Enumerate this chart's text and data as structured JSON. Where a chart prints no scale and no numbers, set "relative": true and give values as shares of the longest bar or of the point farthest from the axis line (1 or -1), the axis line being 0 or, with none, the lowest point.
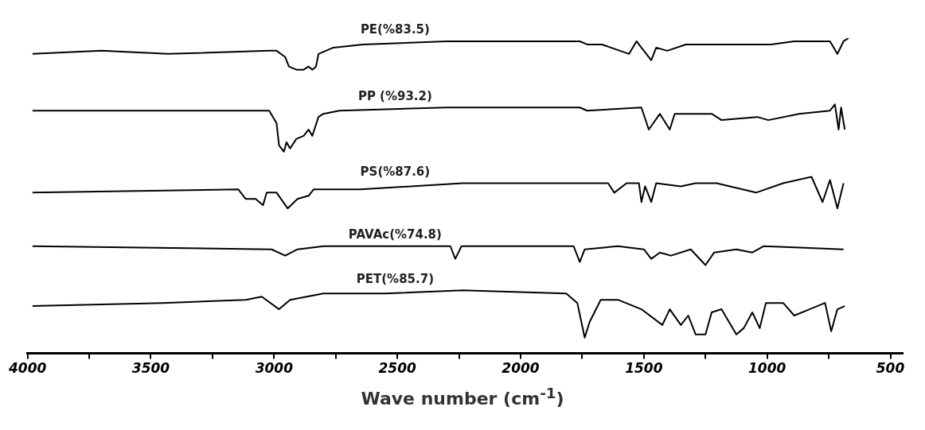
{
  "chart_data": {
    "type": "line",
    "relative": true,
    "xlabel": "Wave number (cm$^{-1}$)",
    "xlim": [
      4000,
      450
    ],
    "xticks": [
      {
        "value": 4000,
        "label": "4000"
      },
      {
        "value": 3750,
        "label": null
      },
      3500,
      {
        "value": 3250,
        "label": null
      },
      3000,
      {
        "value": 2750,
        "label": null
      },
      2500,
      {
        "value": 2250,
        "label": null
      },
      2000,
      {
        "value": 1750,
        "label": null
      },
      1500,
      {
        "value": 1250,
        "label": null
      },
      1000,
      {
        "value": 750,
        "label": null
      },
      500
    ],
    "grid": false,
    "legend": false,
    "marker": "none",
    "line_style": "solid",
    "tick_labels": "x",
    "series": [
      {
        "name": "PE(%83.5)",
        "color": "#000000",
        "x": [
          3980,
          3700,
          3430,
          3020,
          2990,
          2955,
          2940,
          2910,
          2880,
          2860,
          2845,
          2830,
          2820,
          2760,
          2640,
          2300,
          1760,
          1730,
          1670,
          1560,
          1530,
          1470,
          1450,
          1405,
          1330,
          1040,
          985,
          890,
          745,
          715,
          690,
          670
        ],
        "values": [
          0.95,
          0.96,
          0.95,
          0.96,
          0.96,
          0.94,
          0.91,
          0.9,
          0.9,
          0.91,
          0.9,
          0.91,
          0.95,
          0.97,
          0.98,
          0.99,
          0.99,
          0.98,
          0.98,
          0.95,
          0.99,
          0.93,
          0.97,
          0.96,
          0.98,
          0.98,
          0.98,
          0.99,
          0.99,
          0.95,
          0.99,
          1.0
        ]
      },
      {
        "name": "PP (%93.2)",
        "color": "#000000",
        "x": [
          3980,
          3020,
          2990,
          2980,
          2960,
          2950,
          2935,
          2910,
          2880,
          2860,
          2845,
          2820,
          2800,
          2735,
          2300,
          1760,
          1730,
          1510,
          1480,
          1435,
          1395,
          1375,
          1225,
          1185,
          1040,
          995,
          870,
          745,
          725,
          710,
          700,
          685
        ],
        "values": [
          0.77,
          0.77,
          0.73,
          0.66,
          0.64,
          0.67,
          0.65,
          0.68,
          0.69,
          0.71,
          0.69,
          0.75,
          0.76,
          0.77,
          0.78,
          0.78,
          0.77,
          0.78,
          0.71,
          0.76,
          0.71,
          0.76,
          0.76,
          0.74,
          0.75,
          0.74,
          0.76,
          0.77,
          0.79,
          0.71,
          0.78,
          0.71
        ]
      },
      {
        "name": "PS(%87.6)",
        "color": "#000000",
        "x": [
          3980,
          3145,
          3115,
          3075,
          3045,
          3030,
          2990,
          2945,
          2905,
          2860,
          2840,
          2650,
          2235,
          1920,
          1645,
          1620,
          1570,
          1520,
          1510,
          1495,
          1470,
          1450,
          1350,
          1290,
          1205,
          1045,
          935,
          820,
          775,
          745,
          715,
          690
        ],
        "values": [
          0.51,
          0.52,
          0.49,
          0.49,
          0.47,
          0.51,
          0.51,
          0.46,
          0.49,
          0.5,
          0.52,
          0.52,
          0.54,
          0.54,
          0.54,
          0.51,
          0.54,
          0.54,
          0.48,
          0.53,
          0.48,
          0.54,
          0.53,
          0.54,
          0.54,
          0.51,
          0.54,
          0.56,
          0.48,
          0.55,
          0.46,
          0.54
        ]
      },
      {
        "name": "PAVAc(%74.8)",
        "color": "#000000",
        "x": [
          3980,
          3010,
          2955,
          2905,
          2800,
          2285,
          2265,
          2240,
          1785,
          1760,
          1740,
          1605,
          1500,
          1470,
          1435,
          1390,
          1310,
          1250,
          1215,
          1125,
          1060,
          1015,
          690
        ],
        "values": [
          0.34,
          0.33,
          0.31,
          0.33,
          0.34,
          0.34,
          0.3,
          0.34,
          0.34,
          0.29,
          0.33,
          0.34,
          0.33,
          0.3,
          0.32,
          0.31,
          0.33,
          0.28,
          0.32,
          0.33,
          0.32,
          0.34,
          0.33
        ]
      },
      {
        "name": "PET(%85.7)",
        "color": "#000000",
        "x": [
          3980,
          3450,
          3115,
          3050,
          2980,
          2935,
          2800,
          2550,
          2235,
          1815,
          1770,
          1740,
          1720,
          1675,
          1605,
          1510,
          1425,
          1395,
          1350,
          1320,
          1290,
          1250,
          1225,
          1185,
          1125,
          1095,
          1060,
          1030,
          1005,
          935,
          890,
          765,
          740,
          715,
          685
        ],
        "values": [
          0.15,
          0.16,
          0.17,
          0.18,
          0.14,
          0.17,
          0.19,
          0.19,
          0.2,
          0.19,
          0.16,
          0.05,
          0.1,
          0.17,
          0.17,
          0.14,
          0.09,
          0.14,
          0.09,
          0.12,
          0.06,
          0.06,
          0.13,
          0.14,
          0.06,
          0.08,
          0.13,
          0.08,
          0.16,
          0.16,
          0.12,
          0.16,
          0.07,
          0.14,
          0.15
        ]
      }
    ]
  }
}
